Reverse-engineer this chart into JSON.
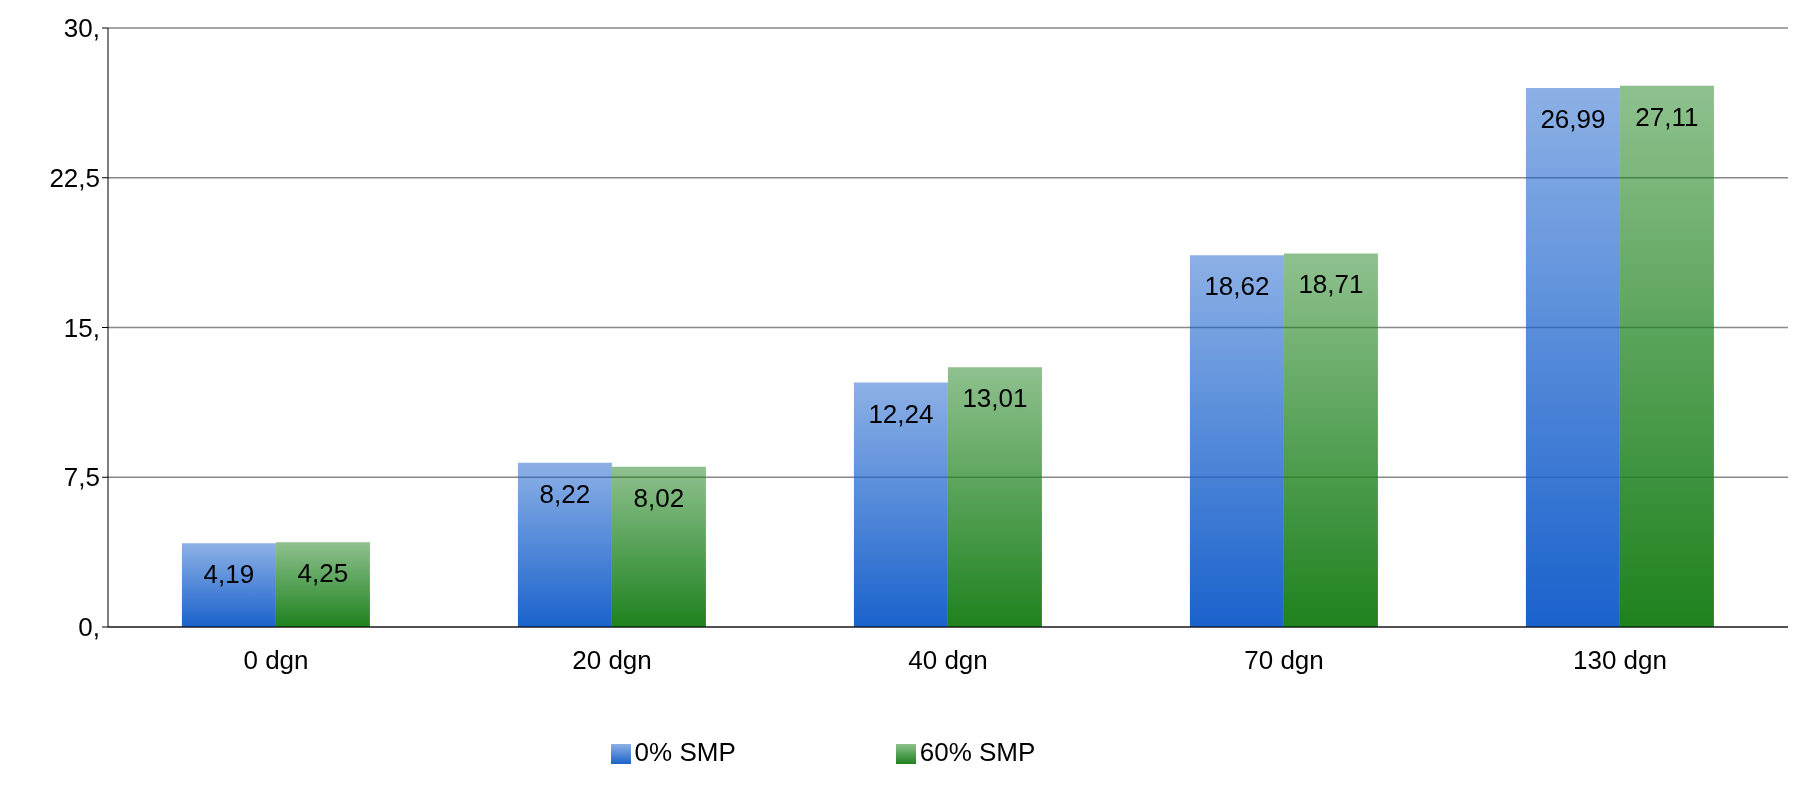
{
  "chart_data": {
    "type": "bar",
    "categories": [
      "0 dgn",
      "20 dgn",
      "40 dgn",
      "70 dgn",
      "130 dgn"
    ],
    "series": [
      {
        "name": "0% SMP",
        "color": "#1a62cc",
        "values": [
          4.19,
          8.22,
          12.24,
          18.62,
          26.99
        ],
        "value_labels": [
          "4,19",
          "8,22",
          "12,24",
          "18,62",
          "26,99"
        ]
      },
      {
        "name": "60% SMP",
        "color": "#1e821e",
        "values": [
          4.25,
          8.02,
          13.01,
          18.71,
          27.11
        ],
        "value_labels": [
          "4,25",
          "8,02",
          "13,01",
          "18,71",
          "27,11"
        ]
      }
    ],
    "ylim": [
      0,
      30
    ],
    "yticks": [
      {
        "value": 0,
        "label": "0,"
      },
      {
        "value": 7.5,
        "label": "7,5"
      },
      {
        "value": 15,
        "label": "15,"
      },
      {
        "value": 22.5,
        "label": "22,5"
      },
      {
        "value": 30,
        "label": "30,"
      }
    ],
    "grid": "y",
    "legend": "bottom"
  }
}
